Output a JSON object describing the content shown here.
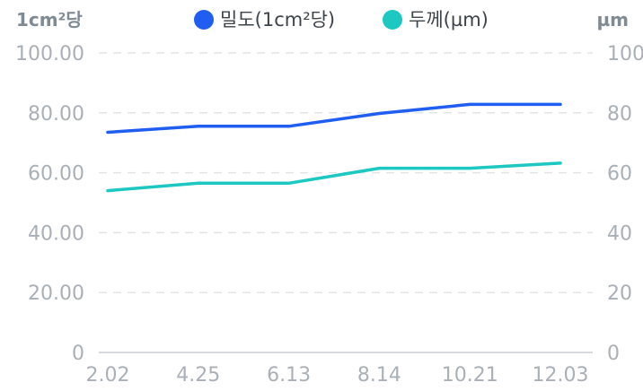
{
  "chart_data": {
    "type": "line",
    "categories": [
      "2.02",
      "4.25",
      "6.13",
      "8.14",
      "10.21",
      "12.03"
    ],
    "series": [
      {
        "name": "밀도(1cm²당)",
        "axis": "left",
        "color": "#1f5ef0",
        "values": [
          73.5,
          75.5,
          75.5,
          79.8,
          82.8,
          82.8
        ]
      },
      {
        "name": "두께(µm)",
        "axis": "right",
        "color": "#1ec8c2",
        "values": [
          54,
          56.5,
          56.5,
          61.5,
          61.5,
          63.2
        ]
      }
    ],
    "left_axis": {
      "unit": "1cm²당",
      "ticks": [
        "0",
        "20.00",
        "40.00",
        "60.00",
        "80.00",
        "100.00"
      ],
      "ylim": [
        0,
        100
      ]
    },
    "right_axis": {
      "unit": "µm",
      "ticks": [
        "0",
        "20",
        "40",
        "60",
        "80",
        "100"
      ],
      "ylim": [
        0,
        100
      ]
    },
    "legend_position": "top-center",
    "grid": true
  }
}
